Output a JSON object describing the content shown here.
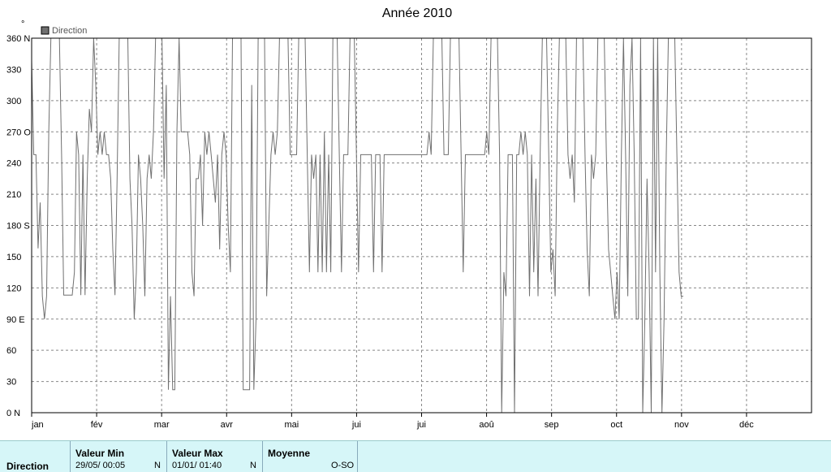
{
  "chart_data": {
    "type": "line",
    "title": "Année 2010",
    "unit_label": "°",
    "legend": [
      {
        "name": "Direction",
        "color": "#707070"
      }
    ],
    "legend_position": "top-left",
    "grid": true,
    "ylim": [
      0,
      360
    ],
    "y_ticks": [
      "0 N",
      "30",
      "60",
      "90 E",
      "120",
      "150",
      "180 S",
      "210",
      "240",
      "270 O",
      "300",
      "330",
      "360 N"
    ],
    "x_ticks": [
      "jan",
      "fév",
      "mar",
      "avr",
      "mai",
      "jui",
      "jui",
      "aoû",
      "sep",
      "oct",
      "nov",
      "déc"
    ],
    "xlim": [
      0,
      365
    ],
    "series": [
      {
        "name": "Direction",
        "color": "#707070",
        "points": [
          [
            0,
            338
          ],
          [
            1,
            248
          ],
          [
            2,
            248
          ],
          [
            3,
            158
          ],
          [
            4,
            202
          ],
          [
            5,
            112
          ],
          [
            6,
            90
          ],
          [
            7,
            112
          ],
          [
            8,
            270
          ],
          [
            9,
            360
          ],
          [
            13,
            360
          ],
          [
            14,
            248
          ],
          [
            15,
            113
          ],
          [
            19,
            113
          ],
          [
            20,
            135
          ],
          [
            21,
            270
          ],
          [
            22,
            248
          ],
          [
            23,
            113
          ],
          [
            24,
            248
          ],
          [
            25,
            113
          ],
          [
            26,
            225
          ],
          [
            27,
            292
          ],
          [
            28,
            270
          ],
          [
            29,
            360
          ],
          [
            30,
            315
          ],
          [
            31,
            248
          ],
          [
            32,
            270
          ],
          [
            33,
            248
          ],
          [
            34,
            270
          ],
          [
            35,
            248
          ],
          [
            36,
            248
          ],
          [
            37,
            225
          ],
          [
            38,
            157
          ],
          [
            39,
            113
          ],
          [
            40,
            225
          ],
          [
            41,
            360
          ],
          [
            45,
            360
          ],
          [
            46,
            225
          ],
          [
            47,
            180
          ],
          [
            48,
            90
          ],
          [
            49,
            135
          ],
          [
            50,
            248
          ],
          [
            51,
            225
          ],
          [
            52,
            180
          ],
          [
            53,
            112
          ],
          [
            54,
            225
          ],
          [
            55,
            248
          ],
          [
            56,
            225
          ],
          [
            57,
            270
          ],
          [
            58,
            360
          ],
          [
            61,
            360
          ],
          [
            62,
            225
          ],
          [
            63,
            315
          ],
          [
            64,
            22
          ],
          [
            65,
            112
          ],
          [
            66,
            22
          ],
          [
            67,
            22
          ],
          [
            68,
            270
          ],
          [
            69,
            360
          ],
          [
            70,
            270
          ],
          [
            73,
            270
          ],
          [
            74,
            248
          ],
          [
            75,
            135
          ],
          [
            76,
            112
          ],
          [
            77,
            225
          ],
          [
            78,
            225
          ],
          [
            79,
            248
          ],
          [
            80,
            180
          ],
          [
            81,
            270
          ],
          [
            82,
            248
          ],
          [
            83,
            270
          ],
          [
            84,
            248
          ],
          [
            85,
            225
          ],
          [
            86,
            202
          ],
          [
            87,
            248
          ],
          [
            88,
            157
          ],
          [
            89,
            248
          ],
          [
            90,
            270
          ],
          [
            91,
            248
          ],
          [
            92,
            180
          ],
          [
            93,
            135
          ],
          [
            94,
            360
          ],
          [
            98,
            360
          ],
          [
            99,
            22
          ],
          [
            101,
            22
          ],
          [
            102,
            22
          ],
          [
            103,
            315
          ],
          [
            104,
            22
          ],
          [
            105,
            90
          ],
          [
            106,
            360
          ],
          [
            109,
            360
          ],
          [
            110,
            112
          ],
          [
            111,
            180
          ],
          [
            112,
            248
          ],
          [
            113,
            270
          ],
          [
            114,
            248
          ],
          [
            115,
            270
          ],
          [
            116,
            360
          ],
          [
            120,
            360
          ],
          [
            121,
            248
          ],
          [
            123,
            248
          ],
          [
            124,
            248
          ],
          [
            125,
            360
          ],
          [
            128,
            360
          ],
          [
            129,
            248
          ],
          [
            130,
            135
          ],
          [
            131,
            248
          ],
          [
            132,
            225
          ],
          [
            133,
            248
          ],
          [
            134,
            135
          ],
          [
            135,
            248
          ],
          [
            136,
            135
          ],
          [
            137,
            270
          ],
          [
            138,
            135
          ],
          [
            139,
            248
          ],
          [
            140,
            135
          ],
          [
            141,
            360
          ],
          [
            143,
            360
          ],
          [
            144,
            248
          ],
          [
            145,
            135
          ],
          [
            146,
            248
          ],
          [
            148,
            248
          ],
          [
            149,
            360
          ],
          [
            151,
            360
          ],
          [
            152,
            248
          ],
          [
            153,
            135
          ],
          [
            154,
            248
          ],
          [
            159,
            248
          ],
          [
            160,
            135
          ],
          [
            161,
            248
          ],
          [
            163,
            248
          ],
          [
            164,
            135
          ],
          [
            165,
            248
          ],
          [
            166,
            248
          ],
          [
            167,
            248
          ],
          [
            178,
            248
          ],
          [
            182,
            248
          ],
          [
            185,
            248
          ],
          [
            186,
            270
          ],
          [
            187,
            248
          ],
          [
            188,
            360
          ],
          [
            192,
            360
          ],
          [
            193,
            248
          ],
          [
            195,
            248
          ],
          [
            196,
            360
          ],
          [
            200,
            360
          ],
          [
            201,
            248
          ],
          [
            202,
            135
          ],
          [
            203,
            248
          ],
          [
            212,
            248
          ],
          [
            213,
            270
          ],
          [
            214,
            248
          ],
          [
            215,
            360
          ],
          [
            218,
            360
          ],
          [
            219,
            248
          ],
          [
            220,
            0
          ],
          [
            221,
            135
          ],
          [
            222,
            112
          ],
          [
            223,
            248
          ],
          [
            224,
            248
          ],
          [
            225,
            248
          ],
          [
            226,
            0
          ],
          [
            227,
            248
          ],
          [
            228,
            248
          ],
          [
            229,
            270
          ],
          [
            230,
            248
          ],
          [
            231,
            270
          ],
          [
            232,
            248
          ],
          [
            233,
            112
          ],
          [
            234,
            248
          ],
          [
            235,
            135
          ],
          [
            236,
            225
          ],
          [
            237,
            112
          ],
          [
            238,
            248
          ],
          [
            239,
            360
          ],
          [
            241,
            360
          ],
          [
            242,
            248
          ],
          [
            243,
            135
          ],
          [
            244,
            157
          ],
          [
            245,
            112
          ],
          [
            246,
            270
          ],
          [
            247,
            360
          ],
          [
            250,
            360
          ],
          [
            251,
            248
          ],
          [
            252,
            225
          ],
          [
            253,
            248
          ],
          [
            254,
            202
          ],
          [
            255,
            360
          ],
          [
            258,
            360
          ],
          [
            259,
            248
          ],
          [
            260,
            157
          ],
          [
            261,
            112
          ],
          [
            262,
            248
          ],
          [
            263,
            225
          ],
          [
            264,
            248
          ],
          [
            265,
            360
          ],
          [
            268,
            360
          ],
          [
            269,
            248
          ],
          [
            270,
            157
          ],
          [
            271,
            135
          ],
          [
            272,
            112
          ],
          [
            273,
            90
          ],
          [
            274,
            135
          ],
          [
            275,
            90
          ],
          [
            276,
            248
          ],
          [
            277,
            360
          ],
          [
            278,
            248
          ],
          [
            279,
            112
          ],
          [
            280,
            315
          ],
          [
            281,
            360
          ],
          [
            282,
            248
          ],
          [
            283,
            90
          ],
          [
            284,
            90
          ],
          [
            285,
            360
          ],
          [
            286,
            0
          ],
          [
            287,
            90
          ],
          [
            288,
            225
          ],
          [
            289,
            135
          ],
          [
            290,
            0
          ],
          [
            291,
            360
          ],
          [
            292,
            135
          ],
          [
            293,
            360
          ],
          [
            294,
            135
          ],
          [
            295,
            0
          ],
          [
            296,
            90
          ],
          [
            297,
            248
          ],
          [
            298,
            360
          ],
          [
            301,
            360
          ],
          [
            302,
            248
          ],
          [
            303,
            135
          ],
          [
            304,
            112
          ],
          [
            305,
            112
          ]
        ]
      }
    ]
  },
  "footer": {
    "row_label": "Direction",
    "min_header": "Valeur Min",
    "min_value": "29/05/  00:05",
    "min_dir": "N",
    "max_header": "Valeur Max",
    "max_value": "01/01/  01:40",
    "max_dir": "N",
    "avg_header": "Moyenne",
    "avg_value": "O-SO"
  }
}
